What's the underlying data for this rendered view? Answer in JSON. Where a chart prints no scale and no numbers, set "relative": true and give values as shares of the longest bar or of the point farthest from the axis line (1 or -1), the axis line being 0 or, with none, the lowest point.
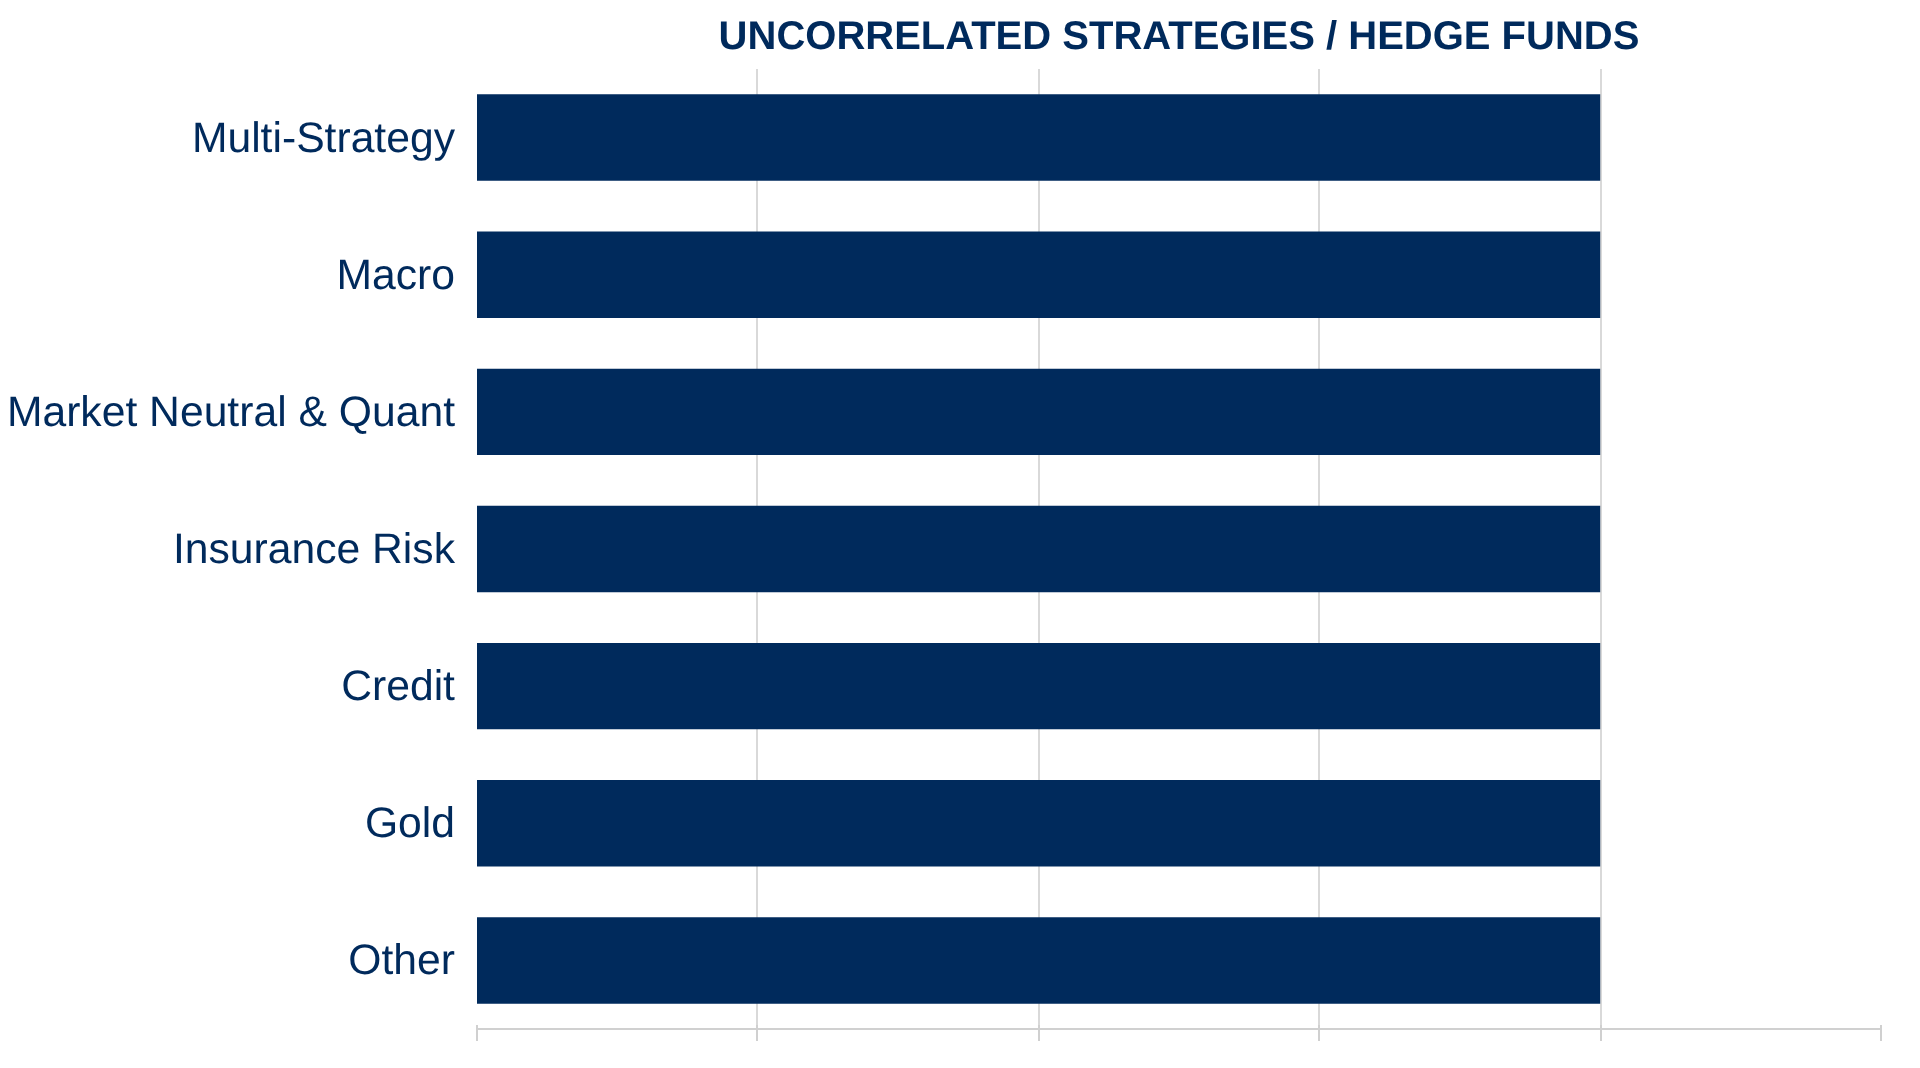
{
  "chart_data": {
    "type": "bar",
    "orientation": "horizontal",
    "relative": true,
    "title": "UNCORRELATED STRATEGIES / HEDGE FUNDS",
    "categories": [
      "Multi-Strategy",
      "Macro",
      "Market Neutral & Quant",
      "Insurance Risk",
      "Credit",
      "Gold",
      "Other"
    ],
    "values": [
      1,
      1,
      1,
      1,
      1,
      1,
      1
    ],
    "color": "#002a5c",
    "grid": "x"
  }
}
